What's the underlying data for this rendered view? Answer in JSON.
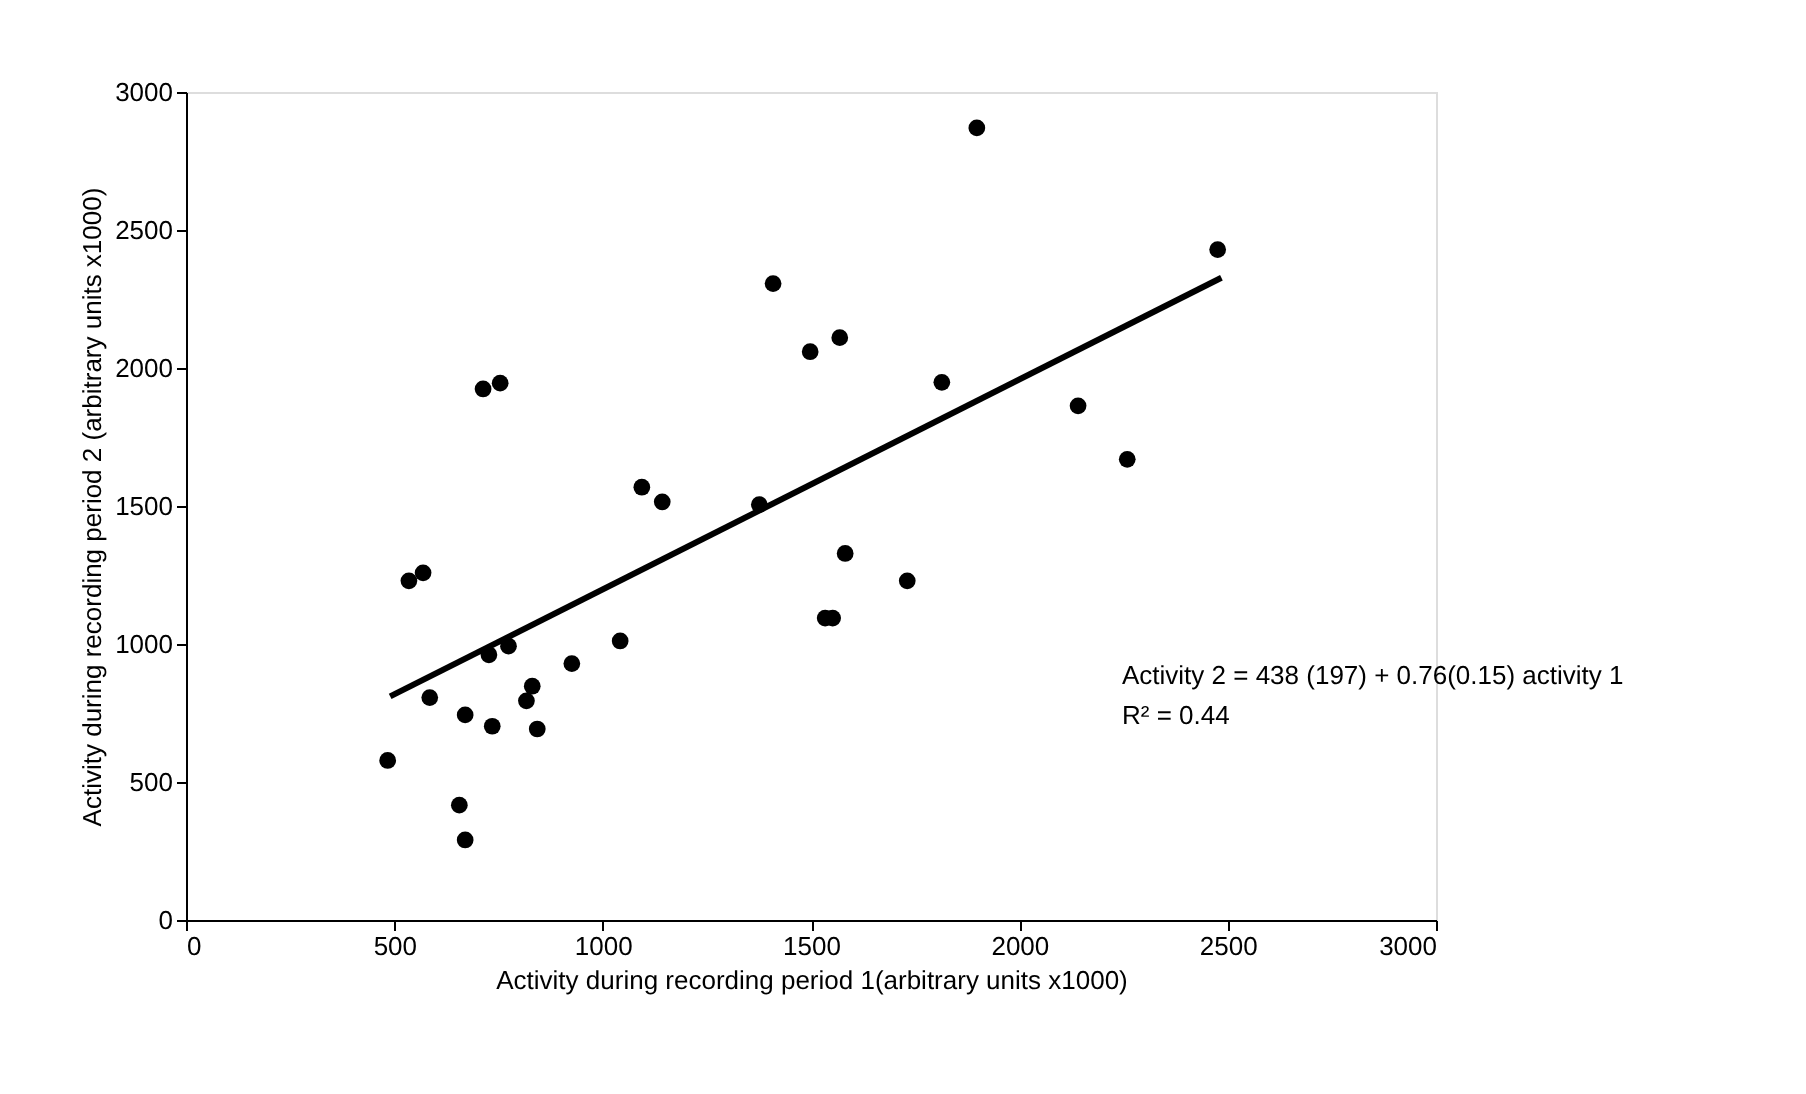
{
  "chart_data": {
    "type": "scatter",
    "xlabel": "Activity during recording period 1(arbitrary units x1000)",
    "ylabel": "Activity during recording period 2 (arbitrary units x1000)",
    "xlim": [
      0,
      3000
    ],
    "xticks": [
      0,
      500,
      1000,
      1500,
      2000,
      2500,
      3000
    ],
    "ylim": [
      0,
      3000
    ],
    "yticks": [
      0,
      500,
      1000,
      1500,
      2000,
      2500,
      3000
    ],
    "grid": false,
    "series": [
      {
        "marker": "circle",
        "color": "#000000",
        "x": [
          484,
          535,
          569,
          585,
          656,
          670,
          670,
          713,
          754,
          727,
          735,
          774,
          817,
          831,
          843,
          926,
          1042,
          1094,
          1143,
          1376,
          1409,
          1498,
          1569,
          1582,
          1534,
          1552,
          1731,
          1814,
          1898,
          2141,
          2259,
          2476
        ],
        "values": [
          578,
          1229,
          1258,
          806,
          416,
          290,
          743,
          1924,
          1945,
          961,
          702,
          992,
          794,
          847,
          692,
          929,
          1011,
          1568,
          1515,
          1505,
          2306,
          2059,
          2110,
          1328,
          1094,
          1094,
          1229,
          1948,
          2870,
          1863,
          1669,
          2429
        ]
      },
      {
        "type": "line",
        "color": "#000000",
        "x": [
          490,
          2485
        ],
        "values": [
          810,
          2327
        ]
      }
    ],
    "annotations": [
      "Activity 2 = 438 (197) + 0.76(0.15) activity 1",
      "R² = 0.44"
    ]
  }
}
